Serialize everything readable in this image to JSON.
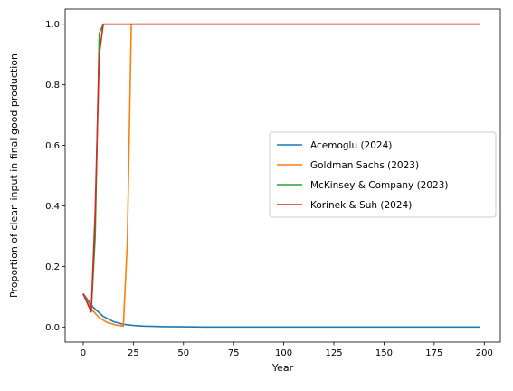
{
  "chart_data": {
    "type": "line",
    "title": "",
    "xlabel": "Year",
    "ylabel": "Proportion of clean input in final good production",
    "xlim": [
      -9,
      208
    ],
    "ylim": [
      -0.05,
      1.05
    ],
    "xticks": [
      0,
      25,
      50,
      75,
      100,
      125,
      150,
      175,
      200
    ],
    "yticks": [
      0.0,
      0.2,
      0.4,
      0.6,
      0.8,
      1.0
    ],
    "ytick_labels": [
      "0.0",
      "0.2",
      "0.4",
      "0.6",
      "0.8",
      "1.0"
    ],
    "grid": false,
    "legend": "center-right",
    "series": [
      {
        "name": "Acemoglu (2024)",
        "color": "#1f77b4",
        "x": [
          0,
          5,
          10,
          15,
          20,
          25,
          30,
          35,
          40,
          50,
          60,
          80,
          100,
          150,
          198
        ],
        "y": [
          0.11,
          0.065,
          0.035,
          0.018,
          0.009,
          0.005,
          0.003,
          0.002,
          0.001,
          0.0005,
          0.0,
          0.0,
          0.0,
          0.0,
          0.0
        ]
      },
      {
        "name": "Goldman Sachs (2023)",
        "color": "#ff7f0e",
        "x": [
          0,
          4,
          8,
          12,
          16,
          20,
          22,
          24,
          26,
          50,
          100,
          150,
          198
        ],
        "y": [
          0.11,
          0.06,
          0.03,
          0.015,
          0.007,
          0.003,
          0.28,
          1.0,
          1.0,
          1.0,
          1.0,
          1.0,
          1.0
        ]
      },
      {
        "name": "McKinsey & Company (2023)",
        "color": "#2ca02c",
        "x": [
          0,
          4,
          6,
          8,
          10,
          12,
          50,
          100,
          150,
          198
        ],
        "y": [
          0.11,
          0.05,
          0.3,
          0.97,
          1.0,
          1.0,
          1.0,
          1.0,
          1.0,
          1.0
        ]
      },
      {
        "name": "Korinek & Suh (2024)",
        "color": "#d62728",
        "x": [
          0,
          4,
          6,
          8,
          10,
          12,
          50,
          100,
          150,
          198
        ],
        "y": [
          0.11,
          0.05,
          0.38,
          0.9,
          1.0,
          1.0,
          1.0,
          1.0,
          1.0,
          1.0
        ]
      }
    ]
  }
}
